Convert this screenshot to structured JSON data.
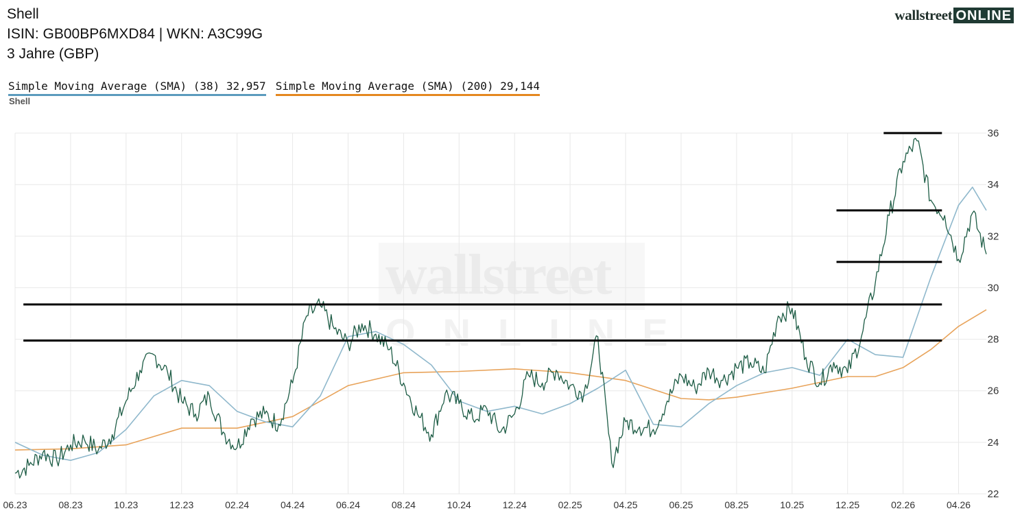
{
  "header": {
    "title": "Shell",
    "ids": "ISIN: GB00BP6MXD84  | WKN: A3C99G",
    "period": "3 Jahre (GBP)"
  },
  "logo": {
    "word": "wallstreet",
    "badge": "ONLINE"
  },
  "watermark": {
    "word": "wallstreet",
    "badge": "ONLINE"
  },
  "legend": {
    "sma38": "Simple Moving Average (SMA) (38) 32,957",
    "sma200": "Simple Moving Average (SMA) (200) 29,144",
    "series_label": "Shell"
  },
  "colors": {
    "price": "#1d5c45",
    "sma38": "#8fb8cc",
    "sma200": "#e8a35a",
    "lines": "#000000",
    "grid": "#e8e8e8"
  },
  "chart_data": {
    "type": "line",
    "x_tick_labels": [
      "06.23",
      "08.23",
      "10.23",
      "12.23",
      "02.24",
      "04.24",
      "06.24",
      "08.24",
      "10.24",
      "12.24",
      "02.25",
      "04.25",
      "06.25",
      "08.25",
      "10.25",
      "12.25",
      "02.26",
      "04.26"
    ],
    "ylim": [
      22,
      36
    ],
    "y_ticks": [
      22,
      24,
      26,
      28,
      30,
      32,
      34,
      36
    ],
    "grid": true,
    "x_range_months": [
      0,
      35
    ],
    "series": [
      {
        "name": "Shell",
        "key": "price",
        "x": [
          0,
          0.5,
          1,
          1.5,
          2,
          2.5,
          3,
          3.5,
          4,
          4.5,
          5,
          5.5,
          6,
          6.5,
          7,
          7.5,
          8,
          8.5,
          9,
          9.5,
          10,
          10.5,
          11,
          11.5,
          12,
          12.5,
          13,
          13.5,
          14,
          14.5,
          15,
          15.5,
          16,
          16.5,
          17,
          17.5,
          18,
          18.5,
          19,
          19.5,
          20,
          20.5,
          21,
          21.5,
          22,
          22.5,
          23,
          23.5,
          24,
          24.5,
          25,
          25.5,
          26,
          26.5,
          27,
          27.5,
          28,
          28.5,
          29,
          29.5,
          30,
          30.5,
          31,
          31.5,
          32,
          32.5,
          33,
          33.5,
          34,
          34.5,
          35
        ],
        "values": [
          22.8,
          23.1,
          23.6,
          23.3,
          23.9,
          24.1,
          23.7,
          24.3,
          25.6,
          26.8,
          27.4,
          26.7,
          25.6,
          25.1,
          25.8,
          24.4,
          23.8,
          24.9,
          25.1,
          24.7,
          26.3,
          28.9,
          29.3,
          28.4,
          27.8,
          28.6,
          28.2,
          27.6,
          26.3,
          25.1,
          24.3,
          25.9,
          25.5,
          24.9,
          25.3,
          24.4,
          25.1,
          26.6,
          26.3,
          26.8,
          26.2,
          25.9,
          28.1,
          23.2,
          24.8,
          24.6,
          24.5,
          25.6,
          26.6,
          26.1,
          26.8,
          26.4,
          26.9,
          27.1,
          26.7,
          28.9,
          29.2,
          27.3,
          26.3,
          27.1,
          26.7,
          28.1,
          30.2,
          32.8,
          34.9,
          35.7,
          33.4,
          32.8,
          31.1,
          32.9,
          31.3
        ]
      },
      {
        "name": "Simple Moving Average (SMA) (38)",
        "key": "sma38",
        "x": [
          0,
          1,
          2,
          3,
          4,
          5,
          6,
          7,
          8,
          9,
          10,
          11,
          12,
          13,
          14,
          15,
          16,
          17,
          18,
          19,
          20,
          21,
          22,
          23,
          24,
          25,
          26,
          27,
          28,
          29,
          30,
          31,
          32,
          33,
          34,
          34.5,
          35
        ],
        "values": [
          24.0,
          23.5,
          23.3,
          23.6,
          24.5,
          25.8,
          26.4,
          26.2,
          25.2,
          24.8,
          24.6,
          25.8,
          28.1,
          28.3,
          27.8,
          27.0,
          25.6,
          25.2,
          25.4,
          25.1,
          25.5,
          26.1,
          26.8,
          24.7,
          24.6,
          25.5,
          26.2,
          26.7,
          26.9,
          26.6,
          28.0,
          27.4,
          27.3,
          30.4,
          33.2,
          33.9,
          33.0
        ]
      },
      {
        "name": "Simple Moving Average (SMA) (200)",
        "key": "sma200",
        "x": [
          0,
          2,
          4,
          6,
          8,
          10,
          12,
          14,
          16,
          18,
          20,
          22,
          24,
          25,
          26,
          28,
          30,
          31,
          32,
          33,
          34,
          35
        ],
        "values": [
          23.7,
          23.75,
          23.9,
          24.55,
          24.55,
          25.0,
          26.2,
          26.7,
          26.75,
          26.85,
          26.7,
          26.4,
          25.7,
          25.65,
          25.75,
          26.1,
          26.55,
          26.55,
          26.9,
          27.6,
          28.5,
          29.144
        ]
      }
    ],
    "horizontal_lines": [
      {
        "y": 36,
        "x_from": 31.3,
        "x_to": 33.4
      },
      {
        "y": 33.0,
        "x_from": 29.6,
        "x_to": 33.4
      },
      {
        "y": 31.0,
        "x_from": 29.6,
        "x_to": 33.4
      },
      {
        "y": 29.35,
        "x_from": 0.3,
        "x_to": 33.4
      },
      {
        "y": 27.95,
        "x_from": 0.3,
        "x_to": 33.4
      }
    ]
  }
}
